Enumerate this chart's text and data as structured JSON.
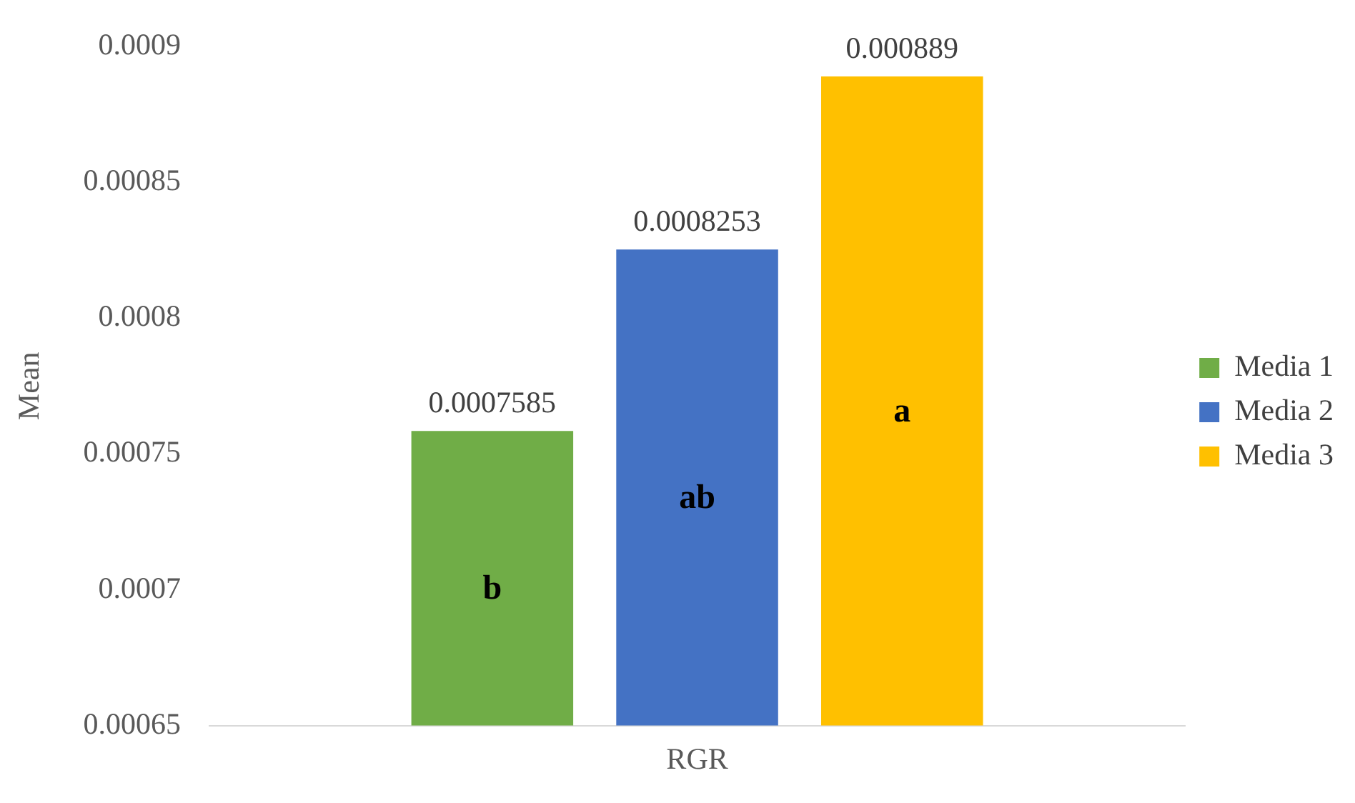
{
  "chart_data": {
    "type": "bar",
    "ylabel": "Mean",
    "categories": [
      "RGR"
    ],
    "series": [
      {
        "name": "Media 1",
        "color": "#70ad47",
        "values": [
          0.0007585
        ]
      },
      {
        "name": "Media 2",
        "color": "#4472c4",
        "values": [
          0.0008253
        ]
      },
      {
        "name": "Media 3",
        "color": "#ffc000",
        "values": [
          0.000889
        ]
      }
    ],
    "ylim": [
      0.00065,
      0.0009
    ],
    "yticks": [
      0.00065,
      0.0007,
      0.00075,
      0.0008,
      0.00085,
      0.0009
    ],
    "grid": false,
    "legend": "right",
    "data_labels": true,
    "annotations": [
      "b",
      "ab",
      "a"
    ]
  }
}
